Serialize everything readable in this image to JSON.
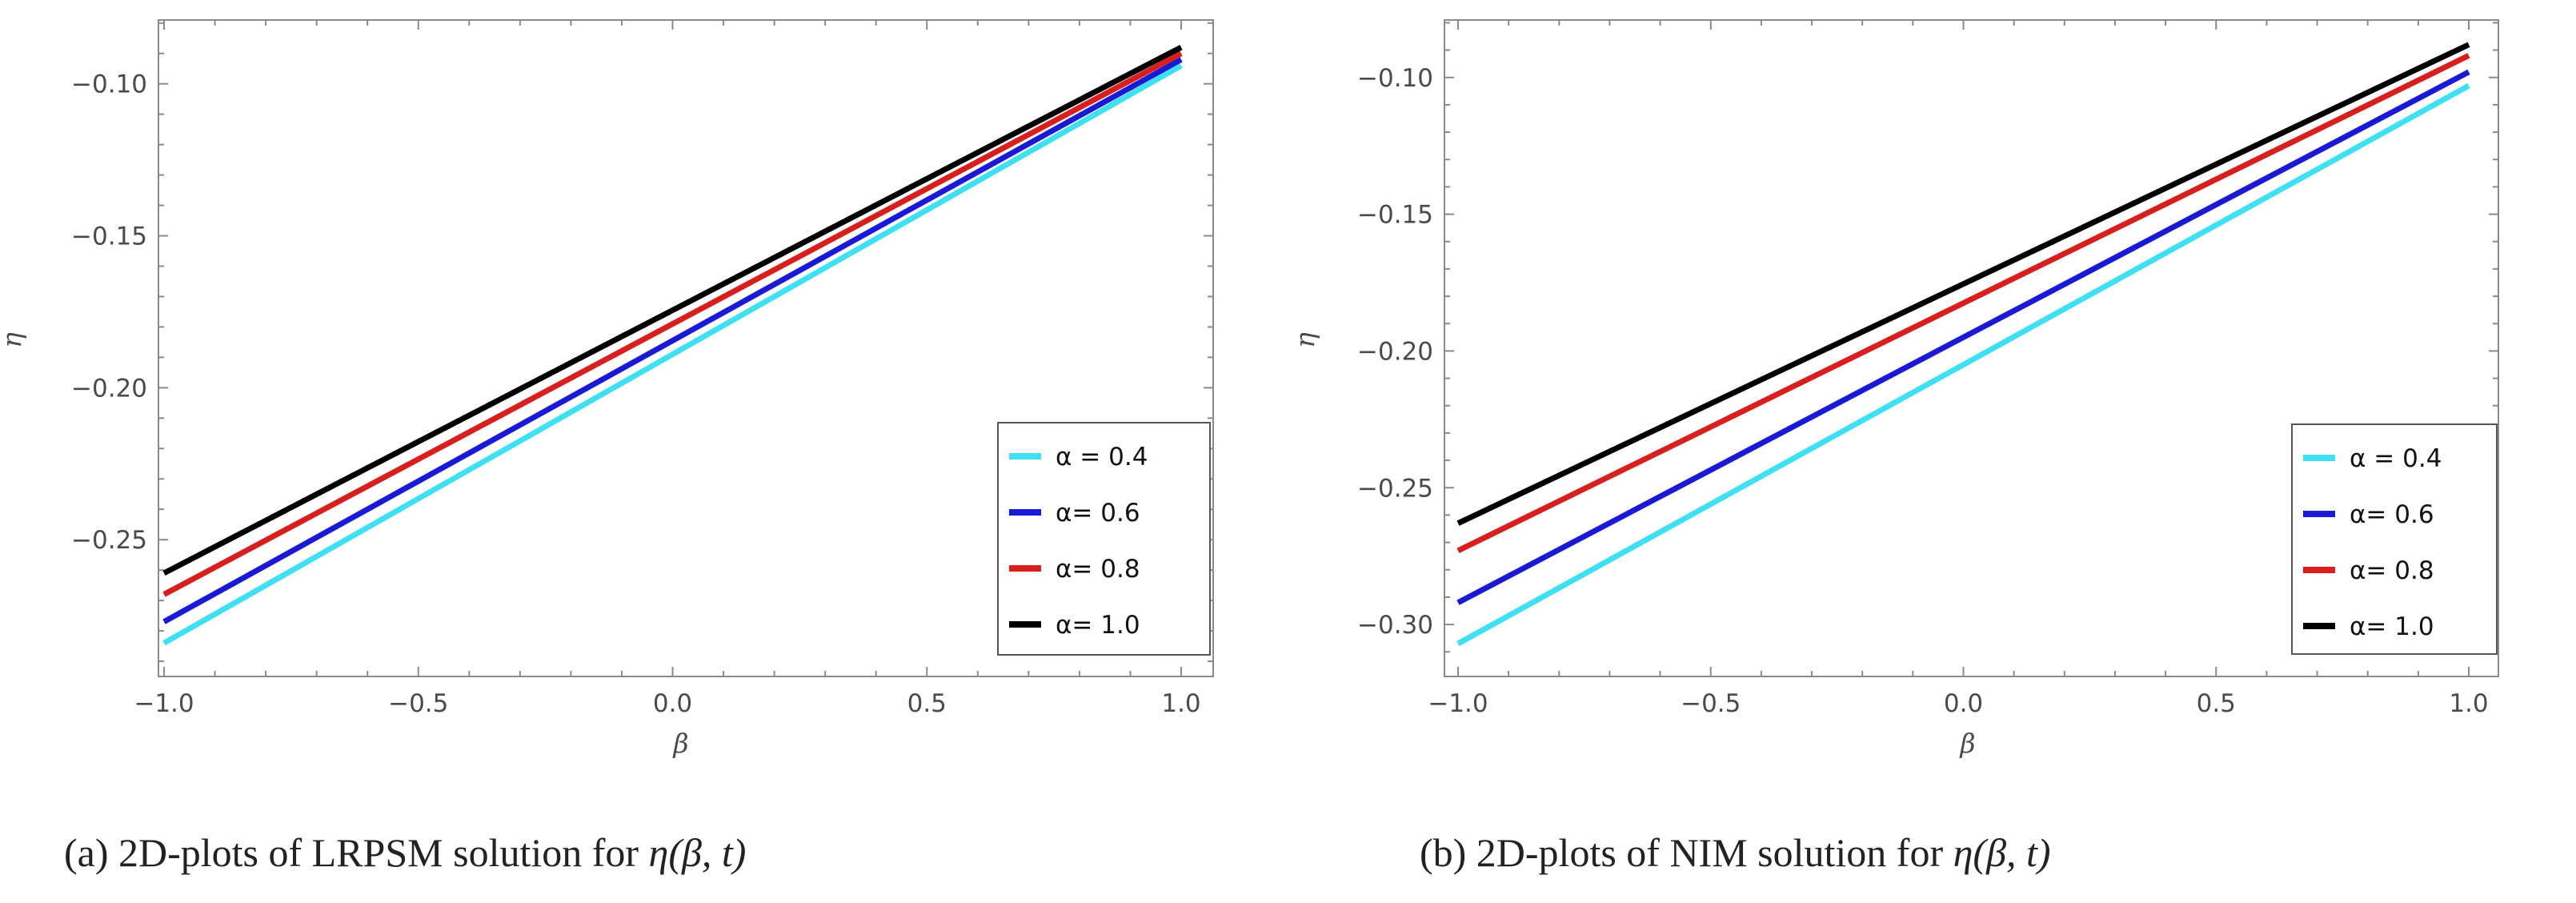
{
  "chart_data": [
    {
      "type": "line",
      "caption": "(a)  2D-plots of LRPSM solution for",
      "caption_math": "η(β, t)",
      "xlabel": "β",
      "ylabel": "η",
      "xlim": [
        -1.0,
        1.0
      ],
      "ylim": [
        -0.295,
        -0.079
      ],
      "xticks": [
        -1.0,
        -0.5,
        0.0,
        0.5,
        1.0
      ],
      "xtick_labels": [
        "-1.0",
        "-0.5",
        "0.0",
        "0.5",
        "1.0"
      ],
      "yticks": [
        -0.25,
        -0.2,
        -0.15,
        -0.1
      ],
      "ytick_labels": [
        "-0.25",
        "-0.20",
        "-0.15",
        "-0.10"
      ],
      "legend_position": "bottom-right",
      "series": [
        {
          "name": "α = 0.4",
          "color": "#3ee0f2",
          "x": [
            -1.0,
            1.0
          ],
          "y": [
            -0.284,
            -0.094
          ]
        },
        {
          "name": "α= 0.6",
          "color": "#1a1ad6",
          "x": [
            -1.0,
            1.0
          ],
          "y": [
            -0.277,
            -0.092
          ]
        },
        {
          "name": "α= 0.8",
          "color": "#d91e1e",
          "x": [
            -1.0,
            1.0
          ],
          "y": [
            -0.268,
            -0.09
          ]
        },
        {
          "name": "α= 1.0",
          "color": "#000000",
          "x": [
            -1.0,
            1.0
          ],
          "y": [
            -0.261,
            -0.088
          ]
        }
      ]
    },
    {
      "type": "line",
      "caption": "(b)  2D-plots of NIM solution for",
      "caption_math": "η(β, t)",
      "xlabel": "β",
      "ylabel": "η",
      "xlim": [
        -1.0,
        1.0
      ],
      "ylim": [
        -0.319,
        -0.079
      ],
      "xticks": [
        -1.0,
        -0.5,
        0.0,
        0.5,
        1.0
      ],
      "xtick_labels": [
        "-1.0",
        "-0.5",
        "0.0",
        "0.5",
        "1.0"
      ],
      "yticks": [
        -0.3,
        -0.25,
        -0.2,
        -0.15,
        -0.1
      ],
      "ytick_labels": [
        "-0.30",
        "-0.25",
        "-0.20",
        "-0.15",
        "-0.10"
      ],
      "legend_position": "bottom-right",
      "series": [
        {
          "name": "α = 0.4",
          "color": "#3ee0f2",
          "x": [
            -1.0,
            1.0
          ],
          "y": [
            -0.307,
            -0.103
          ]
        },
        {
          "name": "α= 0.6",
          "color": "#1a1ad6",
          "x": [
            -1.0,
            1.0
          ],
          "y": [
            -0.292,
            -0.098
          ]
        },
        {
          "name": "α= 0.8",
          "color": "#d91e1e",
          "x": [
            -1.0,
            1.0
          ],
          "y": [
            -0.273,
            -0.092
          ]
        },
        {
          "name": "α= 1.0",
          "color": "#000000",
          "x": [
            -1.0,
            1.0
          ],
          "y": [
            -0.263,
            -0.088
          ]
        }
      ]
    }
  ]
}
